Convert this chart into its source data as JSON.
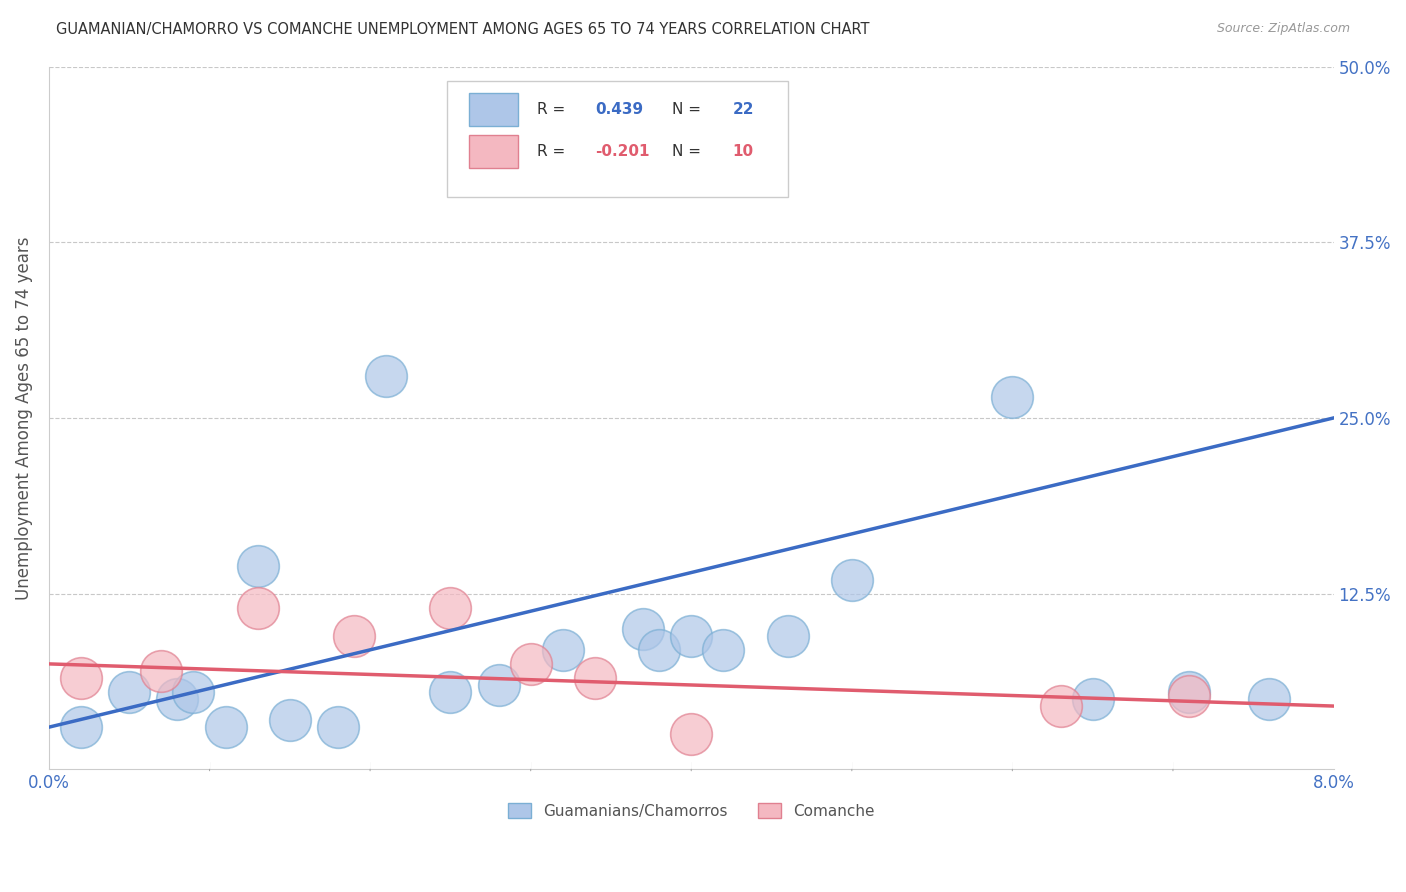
{
  "title": "GUAMANIAN/CHAMORRO VS COMANCHE UNEMPLOYMENT AMONG AGES 65 TO 74 YEARS CORRELATION CHART",
  "source": "Source: ZipAtlas.com",
  "ylabel": "Unemployment Among Ages 65 to 74 years",
  "xlim": [
    0.0,
    0.08
  ],
  "ylim": [
    0.0,
    0.5
  ],
  "xticks": [
    0.0,
    0.08
  ],
  "xticklabels": [
    "0.0%",
    "8.0%"
  ],
  "yticks": [
    0.0,
    0.125,
    0.25,
    0.375,
    0.5
  ],
  "yticklabels_right": [
    "",
    "12.5%",
    "25.0%",
    "37.5%",
    "50.0%"
  ],
  "blue_scatter_x": [
    0.002,
    0.005,
    0.008,
    0.009,
    0.011,
    0.013,
    0.015,
    0.018,
    0.021,
    0.025,
    0.028,
    0.032,
    0.037,
    0.038,
    0.04,
    0.042,
    0.046,
    0.05,
    0.06,
    0.065,
    0.071,
    0.076
  ],
  "blue_scatter_y": [
    0.03,
    0.055,
    0.05,
    0.055,
    0.03,
    0.145,
    0.035,
    0.03,
    0.28,
    0.055,
    0.06,
    0.085,
    0.1,
    0.085,
    0.095,
    0.085,
    0.095,
    0.135,
    0.265,
    0.05,
    0.055,
    0.05
  ],
  "pink_scatter_x": [
    0.002,
    0.007,
    0.013,
    0.019,
    0.025,
    0.03,
    0.034,
    0.04,
    0.063,
    0.071
  ],
  "pink_scatter_y": [
    0.065,
    0.07,
    0.115,
    0.095,
    0.115,
    0.075,
    0.065,
    0.025,
    0.045,
    0.052
  ],
  "blue_line_x0": 0.0,
  "blue_line_y0": 0.03,
  "blue_line_x1": 0.08,
  "blue_line_y1": 0.25,
  "pink_line_x0": 0.0,
  "pink_line_y0": 0.075,
  "pink_line_x1": 0.08,
  "pink_line_y1": 0.045,
  "blue_line_color": "#3b6bc4",
  "pink_line_color": "#e05c6e",
  "blue_dot_color": "#aec6e8",
  "blue_dot_edge": "#7bafd4",
  "pink_dot_color": "#f4b8c1",
  "pink_dot_edge": "#e08090",
  "background_color": "#ffffff",
  "grid_color": "#c8c8c8",
  "title_color": "#333333",
  "axis_label_color": "#555555",
  "tick_color": "#4472c4",
  "source_color": "#999999",
  "legend_R1": "0.439",
  "legend_N1": "22",
  "legend_R2": "-0.201",
  "legend_N2": "10"
}
